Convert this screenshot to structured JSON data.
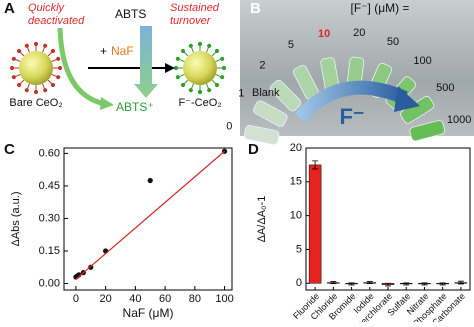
{
  "panel_a": {
    "label": "A",
    "left_note": [
      "Quickly",
      "deactivated"
    ],
    "right_note": [
      "Sustained",
      "turnover"
    ],
    "substrate": "ABTS",
    "reagent_plus": "+",
    "reagent": "NaF",
    "product": "ABTS⁺",
    "bare": "Bare CeO₂",
    "treated": "F⁻-CeO₂"
  },
  "panel_b": {
    "label": "B",
    "header": "[F⁻] (μM) =",
    "concentrations": [
      "0",
      "1",
      "2",
      "5",
      "10",
      "20",
      "50",
      "100",
      "500",
      "1000"
    ],
    "blank": "Blank",
    "arrow_label": "F⁻"
  },
  "chart_data": [
    {
      "type": "scatter",
      "panel_label": "C",
      "x_label": "NaF (μM)",
      "y_label": "ΔAbs (a.u.)",
      "series": [
        {
          "color": "#111111",
          "x": [
            0,
            1,
            2,
            5,
            10,
            20,
            50,
            100
          ],
          "values": [
            0.03,
            0.035,
            0.04,
            0.05,
            0.075,
            0.15,
            0.475,
            0.61
          ]
        },
        {
          "color": "#d62728",
          "style": "line",
          "x": [
            0,
            100
          ],
          "values": [
            0.02,
            0.61
          ]
        }
      ],
      "xlim": [
        -8,
        105
      ],
      "xticks": [
        0,
        20,
        40,
        60,
        80,
        100
      ],
      "ylim": [
        -0.03,
        0.625
      ],
      "yticks": [
        {
          "value": 0,
          "label": "0.00"
        },
        {
          "value": 0.15,
          "label": "0.15"
        },
        {
          "value": 0.3,
          "label": "0.30"
        },
        {
          "value": 0.45,
          "label": "0.45"
        },
        {
          "value": 0.6,
          "label": "0.60"
        }
      ]
    },
    {
      "type": "bar",
      "panel_label": "D",
      "y_label": "ΔA/ΔA₀-1",
      "categories": [
        "Fluoride",
        "Chloride",
        "Bromide",
        "Iodide",
        "Perchlorate",
        "Sulfate",
        "Nitrate",
        "Phosphate",
        "Carbonate"
      ],
      "values": [
        17.5,
        0.1,
        -0.1,
        0.1,
        -0.2,
        -0.1,
        -0.1,
        -0.1,
        0.1
      ],
      "errors": [
        0.6,
        0.15,
        0.15,
        0.15,
        0.2,
        0.15,
        0.15,
        0.15,
        0.2
      ],
      "color": "#e8231f",
      "ylim": [
        -1,
        20
      ],
      "yticks": [
        0,
        5,
        10,
        15,
        20
      ]
    }
  ]
}
